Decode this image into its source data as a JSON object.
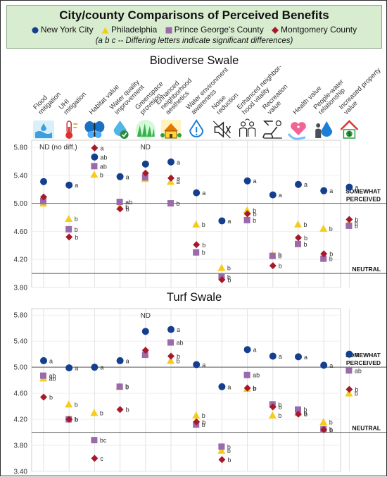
{
  "header": {
    "title": "City/county Comparisons of Perceived Benefits",
    "note": "(a b c -- Differing letters indicate significant differences)",
    "legend": [
      {
        "name": "New York City",
        "color": "#143f8f",
        "shape": "circle"
      },
      {
        "name": "Philadelphia",
        "color": "#f5cc1c",
        "shape": "triangle"
      },
      {
        "name": "Prince George's County",
        "color": "#9a6aaa",
        "shape": "square"
      },
      {
        "name": "Montgomery County",
        "color": "#a8182b",
        "shape": "diamond"
      }
    ]
  },
  "categories": [
    {
      "lines": [
        "Flood",
        "mitigation"
      ],
      "icon": "flood-icon"
    },
    {
      "lines": [
        "UHI",
        "mitigation"
      ],
      "icon": "thermometer-icon"
    },
    {
      "lines": [
        "Habitat value"
      ],
      "icon": "butterfly-icon"
    },
    {
      "lines": [
        "Water quality",
        "improvement"
      ],
      "icon": "water-quality-icon"
    },
    {
      "lines": [
        "Greenspace",
        "provision"
      ],
      "icon": "grass-icon"
    },
    {
      "lines": [
        "Enhanced",
        "neighborhood",
        "aesthetics"
      ],
      "icon": "house-icon"
    },
    {
      "lines": [
        "Water environment",
        "awareness"
      ],
      "icon": "water-drop-icon"
    },
    {
      "lines": [
        "Noise",
        "reduction"
      ],
      "icon": "mute-icon"
    },
    {
      "lines": [
        "Enhanced neighbor-",
        "hood vitality"
      ],
      "icon": "people-icon"
    },
    {
      "lines": [
        "Recreation",
        "value"
      ],
      "icon": "lounge-chair-icon"
    },
    {
      "lines": [
        "Health value"
      ],
      "icon": "health-heart-icon"
    },
    {
      "lines": [
        "People-water",
        "relationship"
      ],
      "icon": "person-drop-icon"
    },
    {
      "lines": [
        "Increased property",
        "value"
      ],
      "icon": "property-value-icon"
    }
  ],
  "chart_data": [
    {
      "type": "scatter",
      "title": "Biodiverse Swale",
      "ylim": [
        3.8,
        5.9
      ],
      "yticks": [
        "3.80",
        "4.20",
        "4.60",
        "5.00",
        "5.40",
        "5.80"
      ],
      "reference_lines": [
        {
          "y": 5.0,
          "label": [
            "SOMEWHAT",
            "PERCEIVED"
          ]
        },
        {
          "y": 4.0,
          "label": [
            "NEUTRAL"
          ]
        }
      ],
      "annotations": [
        {
          "category": 0,
          "text": "ND (no diff.)"
        },
        {
          "category": 4,
          "text": "ND"
        }
      ],
      "series": [
        {
          "name": "New York City",
          "values": [
            5.31,
            5.26,
            5.66,
            5.38,
            5.56,
            5.59,
            5.15,
            4.75,
            5.32,
            5.12,
            5.27,
            5.18,
            5.23
          ],
          "labels": [
            "",
            "a",
            "ab",
            "a",
            "",
            "a",
            "a",
            "a",
            "a",
            "a",
            "a",
            "a",
            "a"
          ]
        },
        {
          "name": "Philadelphia",
          "values": [
            5.0,
            4.78,
            5.41,
            4.95,
            5.35,
            5.31,
            4.7,
            4.08,
            4.9,
            4.27,
            4.7,
            4.64,
            4.72
          ],
          "labels": [
            "",
            "b",
            "b",
            "b",
            "",
            "a",
            "b",
            "b",
            "b",
            "b",
            "b",
            "b",
            "b"
          ]
        },
        {
          "name": "Prince George's County",
          "values": [
            5.03,
            4.63,
            5.53,
            5.02,
            5.37,
            5.0,
            4.3,
            3.95,
            4.76,
            4.25,
            4.42,
            4.21,
            4.68
          ],
          "labels": [
            "",
            "b",
            "ab",
            "ab",
            "",
            "b",
            "b",
            "b",
            "b",
            "b",
            "b",
            "b",
            "b"
          ]
        },
        {
          "name": "Montgomery County",
          "values": [
            5.09,
            4.52,
            5.79,
            4.92,
            5.43,
            5.36,
            4.41,
            3.91,
            4.85,
            4.11,
            4.51,
            4.28,
            4.77
          ],
          "labels": [
            "",
            "b",
            "a",
            "b",
            "",
            "a",
            "b",
            "b",
            "b",
            "b",
            "b",
            "b",
            "b"
          ]
        }
      ]
    },
    {
      "type": "scatter",
      "title": "Turf Swale",
      "ylim": [
        3.4,
        5.9
      ],
      "yticks": [
        "3.40",
        "3.80",
        "4.20",
        "4.60",
        "5.00",
        "5.40",
        "5.80"
      ],
      "reference_lines": [
        {
          "y": 5.0,
          "label": [
            "SOMEWHAT",
            "PERCEIVED"
          ]
        },
        {
          "y": 4.0,
          "label": [
            "NEUTRAL"
          ]
        }
      ],
      "annotations": [
        {
          "category": 4,
          "text": "ND"
        }
      ],
      "series": [
        {
          "name": "New York City",
          "values": [
            5.1,
            4.99,
            5.0,
            5.1,
            5.55,
            5.58,
            5.04,
            4.7,
            5.27,
            5.17,
            5.16,
            5.03,
            5.2
          ],
          "labels": [
            "a",
            "a",
            "a",
            "a",
            "",
            "a",
            "a",
            "a",
            "a",
            "a",
            "a",
            "a",
            "a"
          ]
        },
        {
          "name": "Philadelphia",
          "values": [
            4.83,
            4.43,
            4.3,
            4.71,
            5.21,
            5.1,
            4.26,
            3.72,
            4.67,
            4.26,
            4.3,
            4.16,
            4.6
          ],
          "labels": [
            "ab",
            "b",
            "b",
            "b",
            "",
            "b",
            "b",
            "b",
            "b",
            "b",
            "b",
            "b",
            "b"
          ]
        },
        {
          "name": "Prince George's County",
          "values": [
            4.87,
            4.2,
            3.88,
            4.7,
            5.19,
            5.38,
            4.12,
            3.78,
            4.88,
            4.43,
            4.35,
            4.05,
            4.95
          ],
          "labels": [
            "ab",
            "b",
            "bc",
            "b",
            "",
            "ab",
            "b",
            "b",
            "ab",
            "b",
            "b",
            "b",
            "ab"
          ]
        },
        {
          "name": "Montgomery County",
          "values": [
            4.54,
            4.2,
            3.6,
            4.35,
            5.26,
            5.17,
            4.16,
            3.58,
            4.68,
            4.39,
            4.28,
            4.04,
            4.66
          ],
          "labels": [
            "b",
            "b",
            "c",
            "b",
            "",
            "b",
            "b",
            "b",
            "b",
            "b",
            "b",
            "b",
            "b"
          ]
        }
      ]
    }
  ]
}
